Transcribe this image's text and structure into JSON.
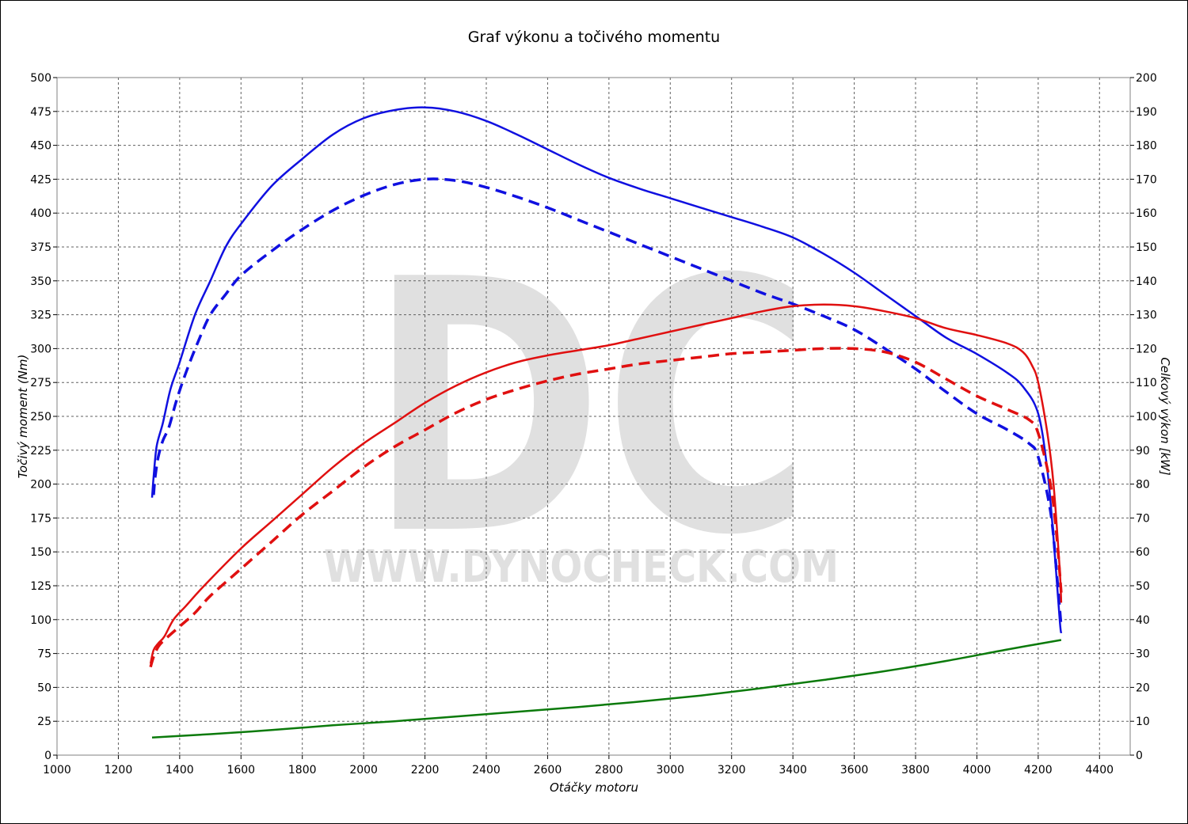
{
  "chart_data": {
    "type": "line",
    "title": "Graf výkonu a točivého momentu",
    "xlabel": "Otáčky motoru",
    "ylabel_left": "Točivý moment (Nm)",
    "ylabel_right": "Celkový výkon [kW]",
    "xlim": [
      1000,
      4500
    ],
    "ylim_left": [
      0,
      500
    ],
    "ylim_right": [
      0,
      200
    ],
    "x_ticks": [
      "1000",
      "1200",
      "1400",
      "1600",
      "1800",
      "2000",
      "2200",
      "2400",
      "2600",
      "2800",
      "3000",
      "3200",
      "3400",
      "3600",
      "3800",
      "4000",
      "4200",
      "4400"
    ],
    "y_left_ticks": [
      "0",
      "25",
      "50",
      "75",
      "100",
      "125",
      "150",
      "175",
      "200",
      "225",
      "250",
      "275",
      "300",
      "325",
      "350",
      "375",
      "400",
      "425",
      "450",
      "475",
      "500"
    ],
    "y_right_ticks": [
      "0",
      "10",
      "20",
      "30",
      "40",
      "50",
      "60",
      "70",
      "80",
      "90",
      "100",
      "110",
      "120",
      "130",
      "140",
      "150",
      "160",
      "170",
      "180",
      "190",
      "200"
    ],
    "grid": true,
    "watermark": {
      "letters": "DC",
      "url": "WWW.DYNOCHECK.COM"
    },
    "series": [
      {
        "axis": "left",
        "color": "#1010e0",
        "dashed": false,
        "points": [
          [
            1310,
            190
          ],
          [
            1315,
            205
          ],
          [
            1325,
            228
          ],
          [
            1345,
            245
          ],
          [
            1370,
            270
          ],
          [
            1400,
            290
          ],
          [
            1450,
            325
          ],
          [
            1500,
            350
          ],
          [
            1550,
            375
          ],
          [
            1600,
            392
          ],
          [
            1700,
            420
          ],
          [
            1800,
            440
          ],
          [
            1900,
            458
          ],
          [
            2000,
            470
          ],
          [
            2100,
            476
          ],
          [
            2200,
            478
          ],
          [
            2300,
            475
          ],
          [
            2400,
            468
          ],
          [
            2500,
            458
          ],
          [
            2600,
            447
          ],
          [
            2700,
            436
          ],
          [
            2800,
            426
          ],
          [
            2900,
            418
          ],
          [
            3000,
            411
          ],
          [
            3100,
            404
          ],
          [
            3200,
            397
          ],
          [
            3300,
            390
          ],
          [
            3400,
            382
          ],
          [
            3500,
            370
          ],
          [
            3600,
            356
          ],
          [
            3700,
            340
          ],
          [
            3800,
            324
          ],
          [
            3900,
            308
          ],
          [
            4000,
            296
          ],
          [
            4100,
            282
          ],
          [
            4150,
            272
          ],
          [
            4200,
            252
          ],
          [
            4230,
            210
          ],
          [
            4250,
            160
          ],
          [
            4270,
            100
          ],
          [
            4275,
            90
          ]
        ]
      },
      {
        "axis": "left",
        "color": "#1010e0",
        "dashed": true,
        "points": [
          [
            1315,
            192
          ],
          [
            1320,
            205
          ],
          [
            1330,
            220
          ],
          [
            1345,
            232
          ],
          [
            1365,
            242
          ],
          [
            1390,
            262
          ],
          [
            1420,
            282
          ],
          [
            1460,
            305
          ],
          [
            1500,
            325
          ],
          [
            1550,
            340
          ],
          [
            1600,
            354
          ],
          [
            1700,
            372
          ],
          [
            1800,
            388
          ],
          [
            1900,
            402
          ],
          [
            2000,
            413
          ],
          [
            2100,
            421
          ],
          [
            2200,
            425
          ],
          [
            2300,
            424
          ],
          [
            2400,
            419
          ],
          [
            2500,
            412
          ],
          [
            2600,
            404
          ],
          [
            2700,
            395
          ],
          [
            2800,
            386
          ],
          [
            2900,
            377
          ],
          [
            3000,
            368
          ],
          [
            3100,
            359
          ],
          [
            3200,
            350
          ],
          [
            3300,
            341
          ],
          [
            3400,
            333
          ],
          [
            3500,
            324
          ],
          [
            3600,
            314
          ],
          [
            3700,
            300
          ],
          [
            3800,
            285
          ],
          [
            3900,
            268
          ],
          [
            4000,
            252
          ],
          [
            4100,
            240
          ],
          [
            4170,
            230
          ],
          [
            4200,
            220
          ],
          [
            4240,
            180
          ],
          [
            4260,
            135
          ],
          [
            4275,
            95
          ]
        ]
      },
      {
        "axis": "right",
        "color": "#e01010",
        "dashed": false,
        "points": [
          [
            1305,
            27
          ],
          [
            1315,
            31
          ],
          [
            1330,
            33
          ],
          [
            1350,
            35
          ],
          [
            1380,
            40
          ],
          [
            1420,
            44
          ],
          [
            1480,
            50
          ],
          [
            1600,
            61
          ],
          [
            1700,
            69
          ],
          [
            1800,
            77
          ],
          [
            1900,
            85
          ],
          [
            2000,
            92
          ],
          [
            2100,
            98
          ],
          [
            2200,
            104
          ],
          [
            2300,
            109
          ],
          [
            2400,
            113
          ],
          [
            2500,
            116
          ],
          [
            2600,
            118
          ],
          [
            2700,
            119.5
          ],
          [
            2800,
            121
          ],
          [
            2900,
            123
          ],
          [
            3000,
            125
          ],
          [
            3100,
            127
          ],
          [
            3200,
            129
          ],
          [
            3300,
            131
          ],
          [
            3400,
            132.5
          ],
          [
            3500,
            133
          ],
          [
            3600,
            132.5
          ],
          [
            3700,
            131
          ],
          [
            3800,
            129
          ],
          [
            3900,
            126
          ],
          [
            4000,
            124
          ],
          [
            4100,
            121.5
          ],
          [
            4150,
            119
          ],
          [
            4180,
            115
          ],
          [
            4200,
            110
          ],
          [
            4230,
            95
          ],
          [
            4250,
            80
          ],
          [
            4270,
            55
          ],
          [
            4275,
            45
          ]
        ]
      },
      {
        "axis": "right",
        "color": "#e01010",
        "dashed": true,
        "points": [
          [
            1305,
            26
          ],
          [
            1315,
            29
          ],
          [
            1330,
            32
          ],
          [
            1350,
            34
          ],
          [
            1400,
            38
          ],
          [
            1450,
            42
          ],
          [
            1500,
            47
          ],
          [
            1600,
            55
          ],
          [
            1700,
            63
          ],
          [
            1800,
            71
          ],
          [
            1900,
            78
          ],
          [
            2000,
            85
          ],
          [
            2100,
            91
          ],
          [
            2200,
            96
          ],
          [
            2300,
            101
          ],
          [
            2400,
            105
          ],
          [
            2500,
            108
          ],
          [
            2600,
            110.5
          ],
          [
            2700,
            112.5
          ],
          [
            2800,
            114
          ],
          [
            2900,
            115.5
          ],
          [
            3000,
            116.5
          ],
          [
            3100,
            117.5
          ],
          [
            3200,
            118.5
          ],
          [
            3300,
            119
          ],
          [
            3400,
            119.5
          ],
          [
            3500,
            120
          ],
          [
            3600,
            120
          ],
          [
            3700,
            119
          ],
          [
            3800,
            116
          ],
          [
            3900,
            111
          ],
          [
            4000,
            106
          ],
          [
            4100,
            102
          ],
          [
            4170,
            99
          ],
          [
            4200,
            95
          ],
          [
            4240,
            80
          ],
          [
            4260,
            65
          ],
          [
            4275,
            48
          ]
        ]
      },
      {
        "axis": "left",
        "color": "#0b7a0b",
        "dashed": false,
        "points": [
          [
            1310,
            13
          ],
          [
            1500,
            15.5
          ],
          [
            1700,
            18.5
          ],
          [
            1900,
            22
          ],
          [
            2100,
            25
          ],
          [
            2300,
            28.5
          ],
          [
            2500,
            32
          ],
          [
            2700,
            35.5
          ],
          [
            2900,
            39.5
          ],
          [
            3100,
            44
          ],
          [
            3300,
            49.5
          ],
          [
            3500,
            55.5
          ],
          [
            3700,
            62
          ],
          [
            3900,
            69.5
          ],
          [
            4100,
            78
          ],
          [
            4275,
            85
          ]
        ]
      }
    ]
  }
}
